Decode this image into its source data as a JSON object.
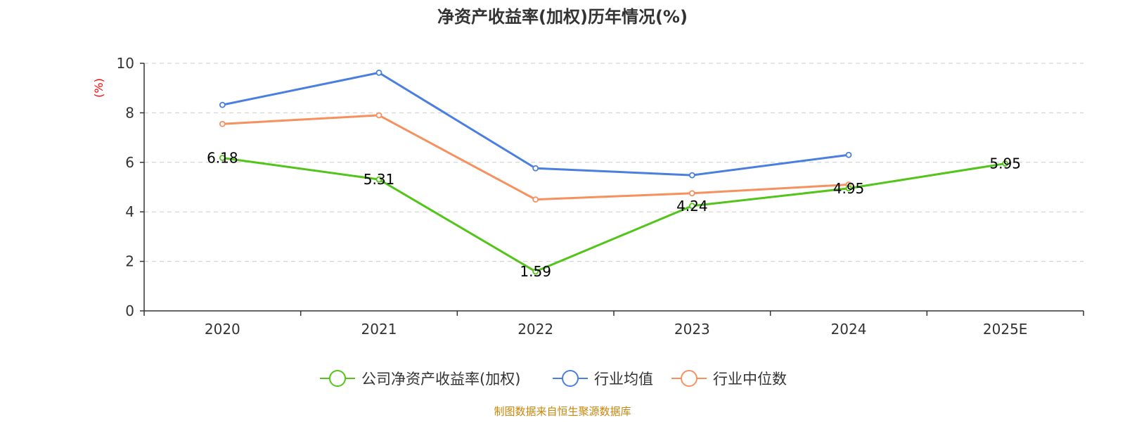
{
  "chart_data": {
    "type": "line",
    "title": "净资产收益率(加权)历年情况(%)",
    "ylabel": "(%)",
    "xlabel": "",
    "categories": [
      "2020",
      "2021",
      "2022",
      "2023",
      "2024",
      "2025E"
    ],
    "ylim": [
      0,
      10
    ],
    "yticks": [
      "0",
      "2",
      "4",
      "6",
      "8",
      "10"
    ],
    "grid": true,
    "legend_position": "bottom-center",
    "series": [
      {
        "name": "公司净资产收益率(加权)",
        "color": "#52c41a",
        "values": [
          6.18,
          5.31,
          1.59,
          4.24,
          4.95,
          5.95
        ],
        "labels": [
          "6.18",
          "5.31",
          "1.59",
          "4.24",
          "4.95",
          "5.95"
        ]
      },
      {
        "name": "行业均值",
        "color": "#4a7fe0",
        "values": [
          8.32,
          9.62,
          5.76,
          5.48,
          6.3,
          null
        ]
      },
      {
        "name": "行业中位数",
        "color": "#f7905f",
        "values": [
          7.55,
          7.9,
          4.5,
          4.75,
          5.1,
          null
        ]
      }
    ],
    "source": "制图数据来自恒生聚源数据库",
    "source_color": "#c8860a"
  }
}
